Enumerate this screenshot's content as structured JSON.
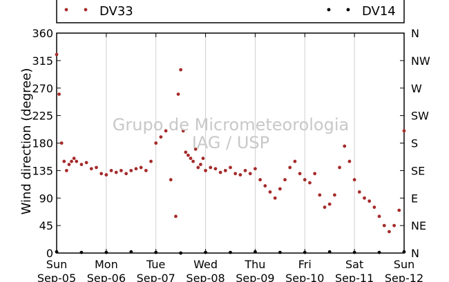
{
  "chart_data": {
    "type": "scatter",
    "ylabel": "Wind direction (degree)",
    "ylim": [
      0,
      360
    ],
    "yticks": [
      0,
      45,
      90,
      135,
      180,
      225,
      270,
      315,
      360
    ],
    "right_tick_labels": [
      "N",
      "NE",
      "E",
      "SE",
      "S",
      "SW",
      "W",
      "NW",
      "N"
    ],
    "xlim": [
      "2010-09-05",
      "2010-09-12"
    ],
    "xtick_labels": [
      [
        "Sun",
        "Sep-05"
      ],
      [
        "Mon",
        "Sep-06"
      ],
      [
        "Tue",
        "Sep-07"
      ],
      [
        "Wed",
        "Sep-08"
      ],
      [
        "Thu",
        "Sep-09"
      ],
      [
        "Fri",
        "Sep-10"
      ],
      [
        "Sat",
        "Sep-11"
      ],
      [
        "Sun",
        "Sep-12"
      ]
    ],
    "grid": "vertical",
    "legend_position": "top",
    "watermark": [
      "Grupo de Micrometeorologia",
      "IAG / USP"
    ],
    "series": [
      {
        "name": "DV33",
        "color": "#a52a2a",
        "x_days": [
          0.0,
          0.05,
          0.1,
          0.15,
          0.2,
          0.25,
          0.3,
          0.35,
          0.4,
          0.5,
          0.6,
          0.7,
          0.8,
          0.9,
          1.0,
          1.1,
          1.2,
          1.3,
          1.4,
          1.5,
          1.6,
          1.7,
          1.8,
          1.9,
          2.0,
          2.1,
          2.2,
          2.3,
          2.4,
          2.45,
          2.5,
          2.55,
          2.6,
          2.65,
          2.7,
          2.75,
          2.8,
          2.85,
          2.9,
          2.95,
          3.0,
          3.1,
          3.2,
          3.3,
          3.4,
          3.5,
          3.6,
          3.7,
          3.8,
          3.9,
          4.0,
          4.1,
          4.2,
          4.3,
          4.4,
          4.5,
          4.6,
          4.7,
          4.8,
          4.9,
          5.0,
          5.1,
          5.2,
          5.3,
          5.4,
          5.5,
          5.6,
          5.7,
          5.8,
          5.9,
          6.0,
          6.1,
          6.2,
          6.3,
          6.4,
          6.5,
          6.6,
          6.7,
          6.8,
          6.9,
          7.0
        ],
        "values": [
          325,
          260,
          180,
          150,
          135,
          145,
          150,
          155,
          150,
          145,
          148,
          138,
          140,
          130,
          128,
          135,
          132,
          135,
          130,
          135,
          138,
          140,
          135,
          150,
          180,
          190,
          200,
          120,
          60,
          260,
          300,
          200,
          165,
          160,
          155,
          150,
          170,
          140,
          145,
          155,
          135,
          140,
          138,
          132,
          135,
          140,
          130,
          128,
          135,
          130,
          138,
          120,
          110,
          100,
          90,
          105,
          120,
          140,
          150,
          130,
          120,
          115,
          130,
          95,
          75,
          80,
          95,
          140,
          175,
          150,
          120,
          100,
          90,
          85,
          75,
          60,
          45,
          35,
          45,
          70,
          200
        ]
      },
      {
        "name": "DV14",
        "color": "#000000",
        "x_days": [
          0.0,
          0.5,
          1.0,
          1.5,
          2.0,
          2.5,
          3.0,
          3.5,
          4.0,
          4.5,
          5.0,
          5.5,
          6.0,
          6.5,
          7.0
        ],
        "values": [
          2,
          1,
          1,
          2,
          1,
          0,
          1,
          1,
          2,
          1,
          1,
          2,
          1,
          1,
          2
        ]
      }
    ]
  }
}
